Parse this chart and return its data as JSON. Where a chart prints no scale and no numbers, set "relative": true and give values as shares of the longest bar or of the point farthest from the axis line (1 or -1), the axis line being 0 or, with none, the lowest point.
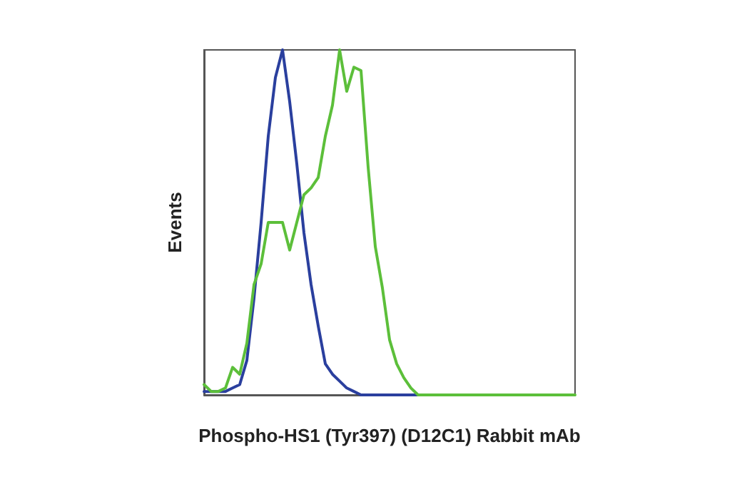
{
  "chart_data": {
    "type": "line",
    "relative": true,
    "xlabel": "Phospho-HS1 (Tyr397) (D12C1) Rabbit mAb",
    "ylabel": "Events",
    "categories": [
      null,
      null,
      null,
      null,
      null,
      null,
      null,
      null,
      null,
      null,
      null,
      null,
      null,
      null,
      null,
      null,
      null,
      null,
      null,
      null,
      null,
      null,
      null,
      null,
      null,
      null,
      null,
      null,
      null,
      null,
      null,
      null,
      null,
      null,
      null,
      null,
      null,
      null,
      null,
      null,
      null,
      null,
      null,
      null,
      null,
      null,
      null,
      null,
      null,
      null,
      null,
      null,
      null
    ],
    "series": [
      {
        "color": "#2a3f9e",
        "values": [
          0.01,
          0.01,
          0.01,
          0.01,
          0.02,
          0.03,
          0.1,
          0.28,
          0.5,
          0.75,
          0.92,
          1.0,
          0.85,
          0.67,
          0.47,
          0.32,
          0.2,
          0.09,
          0.06,
          0.04,
          0.02,
          0.01,
          0,
          0,
          0,
          0,
          0,
          0,
          0,
          0,
          0,
          0,
          null,
          null,
          null,
          null,
          null,
          null,
          null,
          null,
          null,
          null,
          null,
          null,
          null,
          null,
          null,
          null,
          null,
          null,
          null,
          null,
          null
        ]
      },
      {
        "color": "#5cbf3a",
        "values": [
          0.03,
          0.01,
          0.01,
          0.02,
          0.08,
          0.06,
          0.15,
          0.32,
          0.38,
          0.5,
          0.5,
          0.5,
          0.42,
          0.5,
          0.58,
          0.6,
          0.63,
          0.75,
          0.84,
          1.0,
          0.88,
          0.95,
          0.94,
          0.66,
          0.43,
          0.31,
          0.16,
          0.09,
          0.05,
          0.02,
          0,
          0,
          0,
          0,
          0,
          0,
          0,
          0,
          0,
          0,
          0,
          0,
          0,
          0,
          0,
          0,
          0,
          0,
          0,
          0,
          0,
          0,
          0
        ]
      }
    ],
    "grid": false,
    "line_style": "solid"
  }
}
